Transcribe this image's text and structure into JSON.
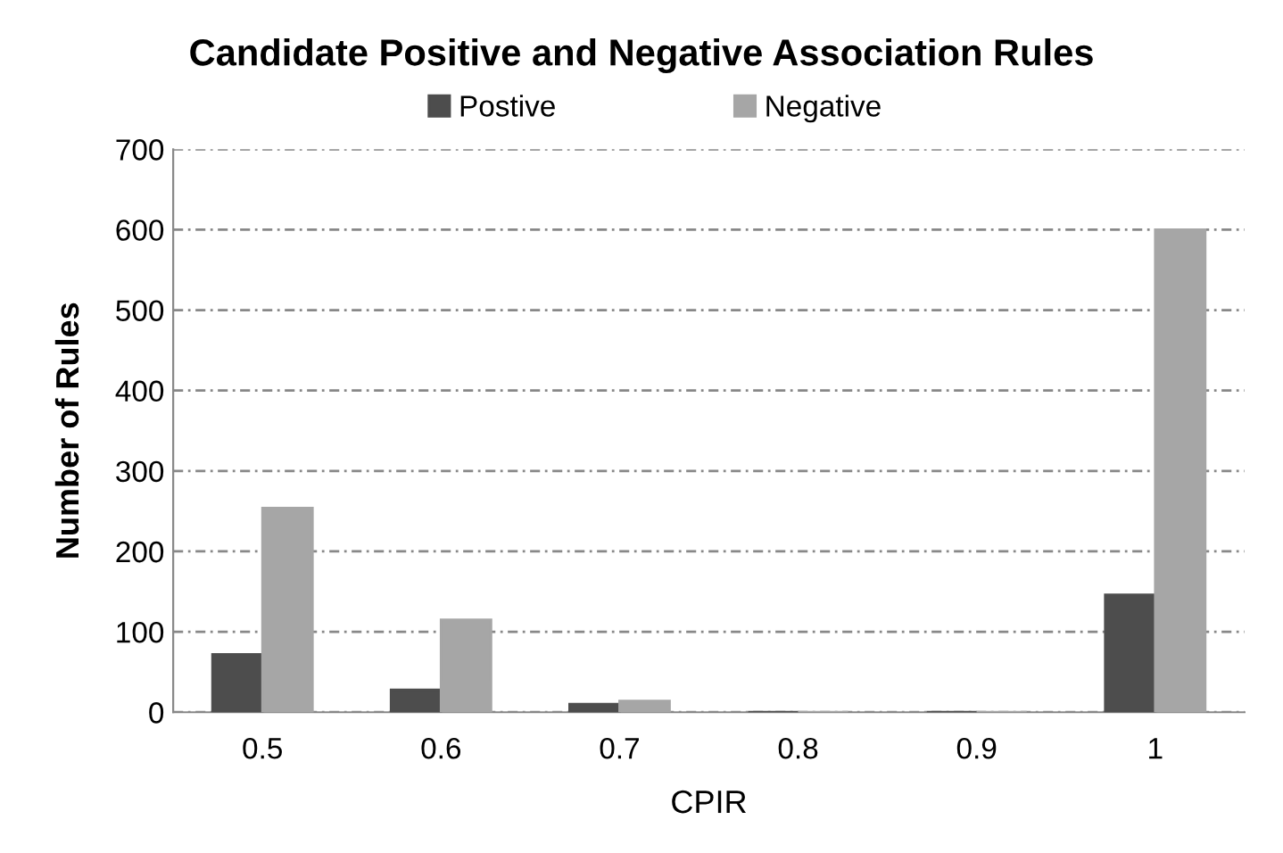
{
  "chart_data": {
    "type": "bar",
    "title": "Candidate Positive and Negative Association Rules",
    "xlabel": "CPIR",
    "ylabel": "Number of Rules",
    "categories": [
      "0.5",
      "0.6",
      "0.7",
      "0.8",
      "0.9",
      "1"
    ],
    "series": [
      {
        "name": "Postive",
        "color": "#4d4d4d",
        "values": [
          72,
          28,
          10,
          0,
          0,
          146
        ]
      },
      {
        "name": "Negative",
        "color": "#a6a6a6",
        "values": [
          254,
          115,
          14,
          0,
          0,
          600
        ]
      }
    ],
    "ylim": [
      0,
      700
    ],
    "yticks": [
      0,
      100,
      200,
      300,
      400,
      500,
      600,
      700
    ],
    "grid": "y",
    "legend": "top"
  }
}
